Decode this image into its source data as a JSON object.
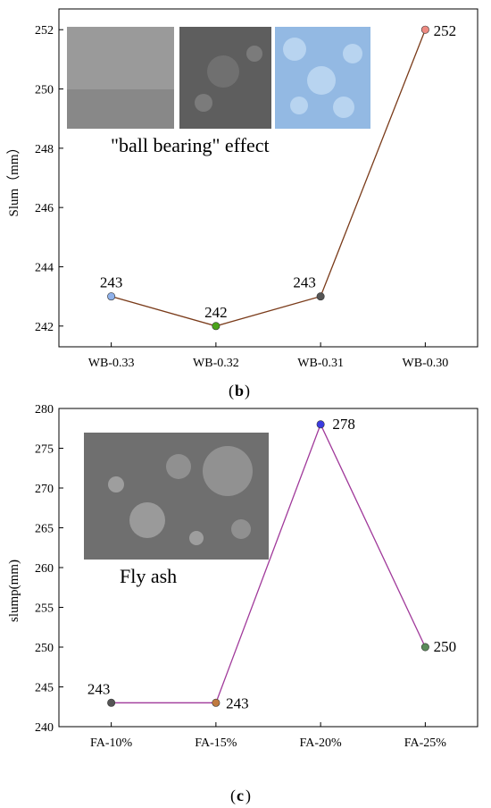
{
  "chart_data": [
    {
      "type": "line",
      "panel": "b",
      "categories": [
        "WB-0.33",
        "WB-0.32",
        "WB-0.31",
        "WB-0.30"
      ],
      "series": [
        {
          "values": [
            243,
            242,
            243,
            252
          ]
        }
      ],
      "point_labels": [
        "243",
        "242",
        "243",
        "252"
      ],
      "point_colors": [
        "#8fb1ea",
        "#4aa31a",
        "#555555",
        "#ee8a82"
      ],
      "line_color": "#7a3b1a",
      "ylabel": "Slum（mm）",
      "ylim": [
        241.3,
        252.7
      ],
      "yticks": [
        242,
        244,
        246,
        248,
        250,
        252
      ],
      "caption_letter": "b",
      "inset_caption": "\"ball bearing\" effect"
    },
    {
      "type": "line",
      "panel": "c",
      "categories": [
        "FA-10%",
        "FA-15%",
        "FA-20%",
        "FA-25%"
      ],
      "series": [
        {
          "values": [
            243,
            243,
            278,
            250
          ]
        }
      ],
      "point_labels": [
        "243",
        "243",
        "278",
        "250"
      ],
      "point_colors": [
        "#555555",
        "#c07a40",
        "#3b3be0",
        "#5a8a5a"
      ],
      "line_color": "#a0399a",
      "ylabel": "slump(mm)",
      "ylim": [
        240,
        280
      ],
      "yticks": [
        240,
        245,
        250,
        255,
        260,
        265,
        270,
        275,
        280
      ],
      "caption_letter": "c",
      "inset_caption": "Fly ash"
    }
  ]
}
